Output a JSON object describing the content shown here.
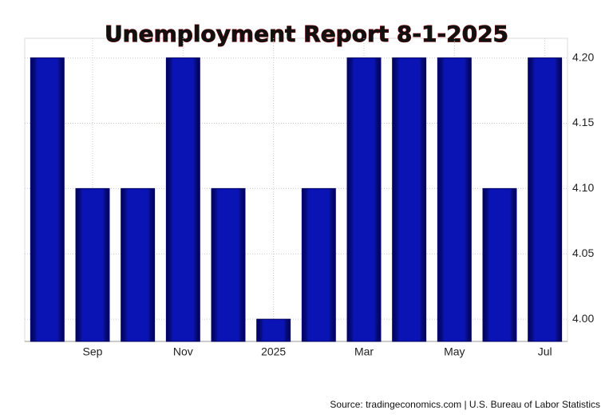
{
  "chart_data": {
    "type": "bar",
    "title": "Unemployment Report 8-1-2025",
    "categories": [
      null,
      "Sep",
      null,
      "Nov",
      null,
      "2025",
      null,
      "Mar",
      null,
      "May",
      null,
      "Jul"
    ],
    "values": [
      4.2,
      4.1,
      4.1,
      4.2,
      4.1,
      4.0,
      4.1,
      4.2,
      4.2,
      4.2,
      4.1,
      4.2
    ],
    "color": "#0a14b4",
    "ylim": [
      3.983,
      4.215
    ],
    "yticks": [
      {
        "value": 4.0,
        "label": "4.00"
      },
      {
        "value": 4.05,
        "label": "4.05"
      },
      {
        "value": 4.1,
        "label": "4.10"
      },
      {
        "value": 4.15,
        "label": "4.15"
      },
      {
        "value": 4.2,
        "label": "4.20"
      }
    ],
    "grid": true,
    "source": "Source: tradingeconomics.com | U.S. Bureau of Labor Statistics"
  }
}
